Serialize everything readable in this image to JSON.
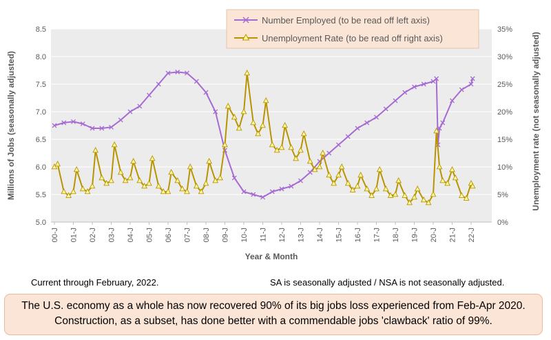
{
  "chart_data": {
    "type": "line",
    "xlabel": "Year & Month",
    "ylabel_left": "Millions of Jobs (seasonally adjusted)",
    "ylabel_right": "Unemployment rate (not seasonally adjusted)",
    "x_tick_labels": [
      "00-J",
      "01-J",
      "02-J",
      "03-J",
      "04-J",
      "05-J",
      "06-J",
      "07-J",
      "08-J",
      "09-J",
      "10-J",
      "11-J",
      "12-J",
      "13-J",
      "14-J",
      "15-J",
      "16-J",
      "17-J",
      "18-J",
      "19-J",
      "20-J",
      "21-J",
      "22-J"
    ],
    "left_yaxis": {
      "min": 5.0,
      "max": 8.5,
      "ticks": [
        "5.0",
        "5.5",
        "6.0",
        "6.5",
        "7.0",
        "7.5",
        "8.0",
        "8.5"
      ]
    },
    "right_yaxis": {
      "min": 0,
      "max": 35,
      "ticks": [
        "0%",
        "5%",
        "10%",
        "15%",
        "20%",
        "25%",
        "30%",
        "35%"
      ]
    },
    "grid": "horizontal",
    "legend_placement": "top-right",
    "series": [
      {
        "name": "Number Employed (to be read off left axis)",
        "axis": "left",
        "color": "#a66bd3",
        "marker": "x",
        "x": [
          2000,
          2000.5,
          2001,
          2001.5,
          2002,
          2002.5,
          2003,
          2003.5,
          2004,
          2004.5,
          2005,
          2005.5,
          2006,
          2006.5,
          2007,
          2007.5,
          2008,
          2008.5,
          2009,
          2009.5,
          2010,
          2010.5,
          2011,
          2011.5,
          2012,
          2012.5,
          2013,
          2013.5,
          2014,
          2014.5,
          2015,
          2015.5,
          2016,
          2016.5,
          2017,
          2017.5,
          2018,
          2018.5,
          2019,
          2019.5,
          2020,
          2020.17,
          2020.25,
          2020.33,
          2020.5,
          2021,
          2021.5,
          2022,
          2022.08
        ],
        "y": [
          6.75,
          6.8,
          6.82,
          6.78,
          6.7,
          6.7,
          6.72,
          6.85,
          7.0,
          7.1,
          7.3,
          7.5,
          7.7,
          7.72,
          7.7,
          7.55,
          7.35,
          7.0,
          6.3,
          5.8,
          5.55,
          5.5,
          5.45,
          5.55,
          5.6,
          5.65,
          5.75,
          5.9,
          6.1,
          6.25,
          6.4,
          6.55,
          6.7,
          6.8,
          6.9,
          7.05,
          7.2,
          7.35,
          7.45,
          7.5,
          7.55,
          7.6,
          6.4,
          6.7,
          6.8,
          7.2,
          7.4,
          7.5,
          7.6
        ]
      },
      {
        "name": "Unemployment Rate (to be read off right axis)",
        "axis": "right",
        "color": "#b89400",
        "marker": "triangle",
        "x": [
          2000,
          2000.17,
          2000.5,
          2000.75,
          2001,
          2001.17,
          2001.5,
          2001.75,
          2002,
          2002.17,
          2002.5,
          2002.75,
          2003,
          2003.17,
          2003.5,
          2003.75,
          2004,
          2004.17,
          2004.5,
          2004.75,
          2005,
          2005.17,
          2005.5,
          2005.75,
          2006,
          2006.17,
          2006.5,
          2006.75,
          2007,
          2007.17,
          2007.5,
          2007.75,
          2008,
          2008.17,
          2008.5,
          2008.75,
          2009,
          2009.17,
          2009.5,
          2009.75,
          2010,
          2010.17,
          2010.5,
          2010.75,
          2011,
          2011.17,
          2011.5,
          2011.75,
          2012,
          2012.17,
          2012.5,
          2012.75,
          2013,
          2013.17,
          2013.5,
          2013.75,
          2014,
          2014.17,
          2014.5,
          2014.75,
          2015,
          2015.17,
          2015.5,
          2015.75,
          2016,
          2016.17,
          2016.5,
          2016.75,
          2017,
          2017.17,
          2017.5,
          2017.75,
          2018,
          2018.17,
          2018.5,
          2018.75,
          2019,
          2019.17,
          2019.5,
          2019.75,
          2020,
          2020.17,
          2020.33,
          2020.5,
          2020.75,
          2021,
          2021.17,
          2021.5,
          2021.75,
          2022,
          2022.08
        ],
        "y": [
          10,
          10.5,
          5.5,
          4.8,
          5.5,
          9.5,
          6,
          5.5,
          6.5,
          13,
          8,
          7,
          7.5,
          14,
          9,
          7.5,
          8,
          11,
          7.5,
          6.5,
          7,
          11.5,
          6.5,
          5.5,
          5.5,
          9,
          7.5,
          6,
          5.5,
          10,
          6.5,
          5.5,
          7,
          11,
          7.5,
          8,
          14,
          21,
          19,
          17,
          20,
          27,
          18,
          16,
          17.5,
          22,
          14,
          13,
          13.5,
          17.5,
          13.5,
          11.5,
          13,
          16,
          11,
          9.5,
          10,
          12.5,
          8.5,
          7,
          8.5,
          10,
          7,
          5.8,
          6.5,
          8.5,
          6,
          4.8,
          6,
          9.5,
          6,
          4.8,
          5,
          7.5,
          4.8,
          3.5,
          4.5,
          6,
          4,
          3.5,
          5,
          16.5,
          10,
          7.5,
          7,
          9.5,
          8,
          4.8,
          4.3,
          7,
          6.5
        ]
      }
    ]
  },
  "notes": {
    "left": "Current through February, 2022.",
    "right": "SA is seasonally adjusted / NSA is not seasonally adjusted."
  },
  "callout": {
    "line1": "The U.S. economy as a whole has now recovered 90% of its big jobs loss experienced from Feb-Apr 2020.",
    "line2": "Construction, as a subset, has done better with a commendable jobs 'clawback' ratio of 99%."
  }
}
